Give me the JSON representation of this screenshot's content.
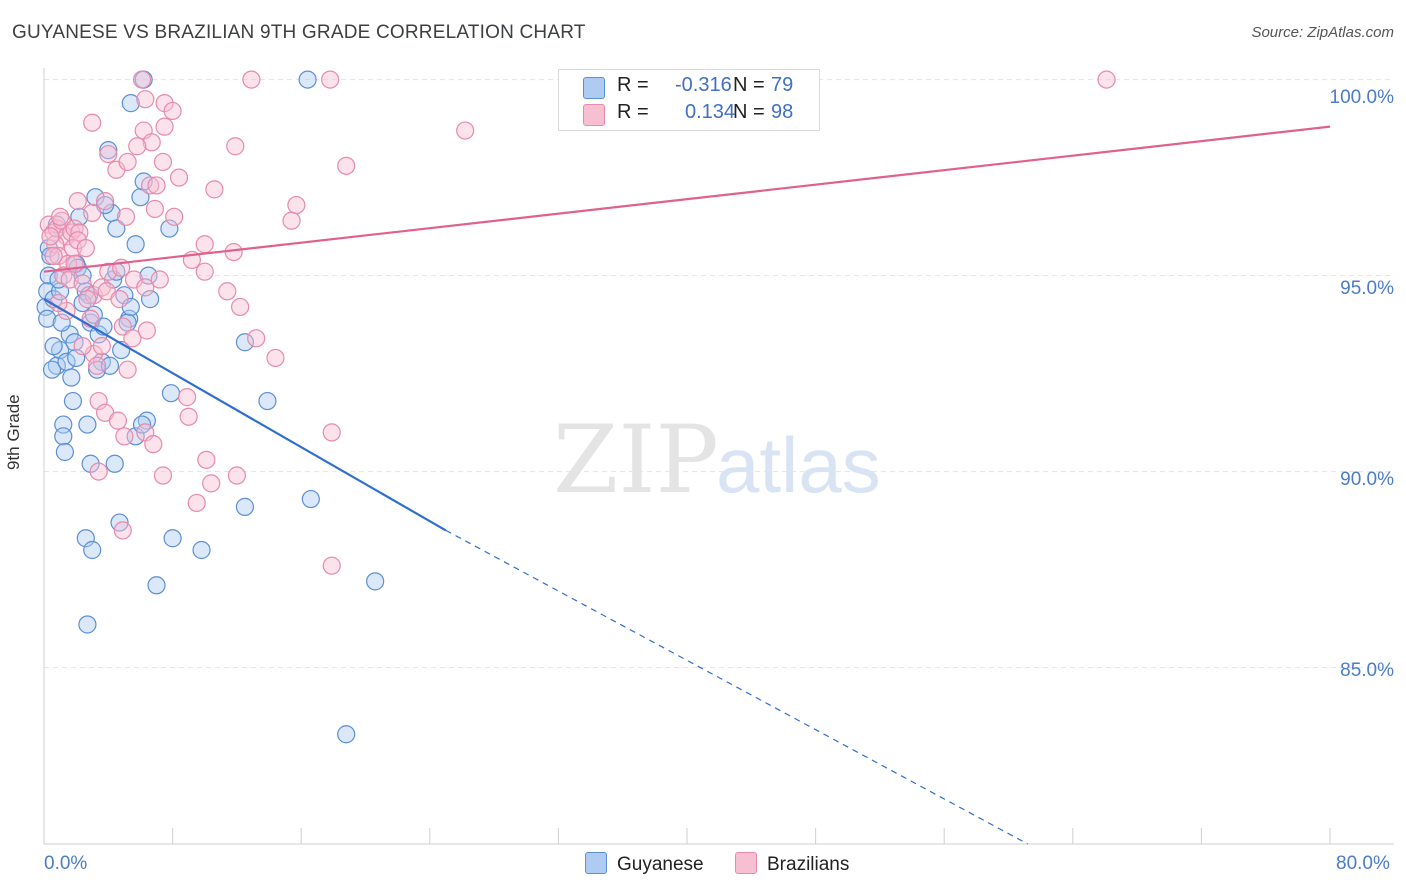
{
  "title": "GUYANESE VS BRAZILIAN 9TH GRADE CORRELATION CHART",
  "source": "Source: ZipAtlas.com",
  "watermark": {
    "zip": "ZIP",
    "atlas": "atlas"
  },
  "colors": {
    "blue_fill": "#aecbf2",
    "blue_stroke": "#5b8fd6",
    "blue_line": "#2f6fcf",
    "pink_fill": "#f6bfd2",
    "pink_stroke": "#e88aab",
    "pink_line": "#e0608e",
    "axis_text": "#4a7cc9"
  },
  "legend": {
    "rows": [
      {
        "swatch": "blue",
        "r_label": "R =",
        "r_value": "-0.316",
        "n_label": "N =",
        "n_value": "79"
      },
      {
        "swatch": "pink",
        "r_label": "R =",
        "r_value": "0.134",
        "n_label": "N =",
        "n_value": "98"
      }
    ]
  },
  "bottom_legend": [
    "Guyanese",
    "Brazilians"
  ],
  "chart_data": {
    "type": "scatter",
    "title": "GUYANESE VS BRAZILIAN 9TH GRADE CORRELATION CHART",
    "xlabel": "",
    "ylabel": "9th Grade",
    "xlim": [
      0,
      80
    ],
    "ylim": [
      80.5,
      100.5
    ],
    "x_tick_labels": [
      "0.0%",
      "80.0%"
    ],
    "y_ticks": [
      85,
      90,
      95,
      100
    ],
    "y_tick_labels": [
      "85.0%",
      "90.0%",
      "95.0%",
      "100.0%"
    ],
    "grid": true,
    "series": [
      {
        "name": "Guyanese",
        "color": "blue",
        "trend": {
          "x0": 0,
          "y0": 94.4,
          "x1": 25,
          "y1": 88.5,
          "dash_to_x": 61.2,
          "dash_to_y": 80.5
        },
        "points": [
          [
            0.1,
            94.2
          ],
          [
            0.3,
            95.0
          ],
          [
            0.2,
            94.6
          ],
          [
            0.6,
            94.4
          ],
          [
            0.8,
            92.7
          ],
          [
            0.5,
            92.6
          ],
          [
            1.2,
            91.2
          ],
          [
            1.0,
            93.1
          ],
          [
            1.4,
            92.8
          ],
          [
            1.7,
            92.4
          ],
          [
            2.0,
            95.3
          ],
          [
            2.1,
            95.2
          ],
          [
            1.6,
            93.5
          ],
          [
            1.9,
            93.3
          ],
          [
            2.6,
            94.6
          ],
          [
            2.8,
            94.5
          ],
          [
            2.4,
            95.0
          ],
          [
            2.9,
            93.8
          ],
          [
            3.1,
            94.0
          ],
          [
            3.4,
            93.5
          ],
          [
            3.6,
            92.8
          ],
          [
            4.3,
            94.9
          ],
          [
            4.5,
            95.1
          ],
          [
            5.0,
            94.5
          ],
          [
            5.3,
            93.9
          ],
          [
            5.2,
            93.8
          ],
          [
            6.5,
            95.0
          ],
          [
            6.6,
            94.4
          ],
          [
            4.0,
            98.2
          ],
          [
            5.4,
            99.4
          ],
          [
            6.2,
            100.0
          ],
          [
            16.4,
            100.0
          ],
          [
            3.2,
            97.0
          ],
          [
            4.2,
            96.6
          ],
          [
            4.5,
            96.2
          ],
          [
            6.0,
            97.0
          ],
          [
            7.8,
            96.2
          ],
          [
            2.2,
            96.5
          ],
          [
            0.8,
            96.3
          ],
          [
            0.3,
            95.7
          ],
          [
            3.8,
            96.8
          ],
          [
            6.2,
            97.4
          ],
          [
            5.7,
            95.8
          ],
          [
            1.0,
            94.6
          ],
          [
            2.4,
            94.3
          ],
          [
            3.3,
            92.6
          ],
          [
            4.1,
            92.7
          ],
          [
            2.7,
            91.2
          ],
          [
            1.2,
            90.9
          ],
          [
            1.3,
            90.5
          ],
          [
            2.9,
            90.2
          ],
          [
            4.4,
            90.2
          ],
          [
            5.7,
            90.9
          ],
          [
            6.4,
            91.3
          ],
          [
            6.1,
            91.2
          ],
          [
            7.9,
            92.0
          ],
          [
            12.5,
            93.3
          ],
          [
            13.9,
            91.8
          ],
          [
            12.5,
            89.1
          ],
          [
            16.6,
            89.3
          ],
          [
            2.6,
            88.3
          ],
          [
            3.0,
            88.0
          ],
          [
            4.7,
            88.7
          ],
          [
            8.0,
            88.3
          ],
          [
            9.8,
            88.0
          ],
          [
            7.0,
            87.1
          ],
          [
            20.6,
            87.2
          ],
          [
            2.7,
            86.1
          ],
          [
            18.8,
            83.3
          ],
          [
            0.2,
            93.9
          ],
          [
            0.6,
            93.2
          ],
          [
            1.1,
            93.8
          ],
          [
            2.0,
            92.9
          ],
          [
            3.7,
            93.7
          ],
          [
            5.4,
            94.2
          ],
          [
            4.8,
            93.1
          ],
          [
            1.8,
            91.8
          ],
          [
            0.4,
            95.5
          ],
          [
            0.9,
            94.9
          ]
        ]
      },
      {
        "name": "Brazilians",
        "color": "pink",
        "trend": {
          "x0": 0,
          "y0": 95.1,
          "x1": 80,
          "y1": 98.8
        },
        "points": [
          [
            0.3,
            96.3
          ],
          [
            0.6,
            96.1
          ],
          [
            0.8,
            96.2
          ],
          [
            1.1,
            96.4
          ],
          [
            1.4,
            96.0
          ],
          [
            1.7,
            96.1
          ],
          [
            1.9,
            96.2
          ],
          [
            2.2,
            96.1
          ],
          [
            0.7,
            95.8
          ],
          [
            0.9,
            95.5
          ],
          [
            1.5,
            95.3
          ],
          [
            1.8,
            95.7
          ],
          [
            2.1,
            95.9
          ],
          [
            2.6,
            95.7
          ],
          [
            1.2,
            95.0
          ],
          [
            1.6,
            94.9
          ],
          [
            2.4,
            94.8
          ],
          [
            3.1,
            94.5
          ],
          [
            3.6,
            94.7
          ],
          [
            4.0,
            95.1
          ],
          [
            4.8,
            95.2
          ],
          [
            5.6,
            94.9
          ],
          [
            6.3,
            94.7
          ],
          [
            7.2,
            94.9
          ],
          [
            4.5,
            97.7
          ],
          [
            5.2,
            97.9
          ],
          [
            6.6,
            97.3
          ],
          [
            7.4,
            97.9
          ],
          [
            8.4,
            97.5
          ],
          [
            10.6,
            97.2
          ],
          [
            3.8,
            96.9
          ],
          [
            5.1,
            96.5
          ],
          [
            6.9,
            96.7
          ],
          [
            8.1,
            96.5
          ],
          [
            10.0,
            95.8
          ],
          [
            11.8,
            95.6
          ],
          [
            9.2,
            95.4
          ],
          [
            10.0,
            95.1
          ],
          [
            11.4,
            94.6
          ],
          [
            12.2,
            94.2
          ],
          [
            13.2,
            93.4
          ],
          [
            14.4,
            92.9
          ],
          [
            3.1,
            93.0
          ],
          [
            3.6,
            93.2
          ],
          [
            4.9,
            93.7
          ],
          [
            5.5,
            93.4
          ],
          [
            6.4,
            93.6
          ],
          [
            2.4,
            93.2
          ],
          [
            3.3,
            92.7
          ],
          [
            5.2,
            92.6
          ],
          [
            3.4,
            91.8
          ],
          [
            3.8,
            91.5
          ],
          [
            4.6,
            91.3
          ],
          [
            6.3,
            91.0
          ],
          [
            5.0,
            90.9
          ],
          [
            6.8,
            90.7
          ],
          [
            8.9,
            91.9
          ],
          [
            9.0,
            91.4
          ],
          [
            10.1,
            90.3
          ],
          [
            3.4,
            90.0
          ],
          [
            7.4,
            89.9
          ],
          [
            10.4,
            89.7
          ],
          [
            12.0,
            89.9
          ],
          [
            9.5,
            89.2
          ],
          [
            4.9,
            88.5
          ],
          [
            17.9,
            91.0
          ],
          [
            17.9,
            87.6
          ],
          [
            6.3,
            99.5
          ],
          [
            7.5,
            99.4
          ],
          [
            8.0,
            99.2
          ],
          [
            12.9,
            100.0
          ],
          [
            17.8,
            100.0
          ],
          [
            66.1,
            100.0
          ],
          [
            6.1,
            100.0
          ],
          [
            3.0,
            98.9
          ],
          [
            6.2,
            98.7
          ],
          [
            6.7,
            98.4
          ],
          [
            11.9,
            98.3
          ],
          [
            18.8,
            97.8
          ],
          [
            26.2,
            98.7
          ],
          [
            15.7,
            96.8
          ],
          [
            15.4,
            96.4
          ],
          [
            7.5,
            98.8
          ],
          [
            4.0,
            98.1
          ],
          [
            2.1,
            96.9
          ],
          [
            3.0,
            96.6
          ],
          [
            1.0,
            96.5
          ],
          [
            0.4,
            96.0
          ],
          [
            0.6,
            95.5
          ],
          [
            1.9,
            95.3
          ],
          [
            2.7,
            94.4
          ],
          [
            3.9,
            94.6
          ],
          [
            4.7,
            94.4
          ],
          [
            2.9,
            93.9
          ],
          [
            1.4,
            94.1
          ],
          [
            0.9,
            94.3
          ],
          [
            5.8,
            98.3
          ],
          [
            7.0,
            97.3
          ]
        ]
      }
    ]
  }
}
